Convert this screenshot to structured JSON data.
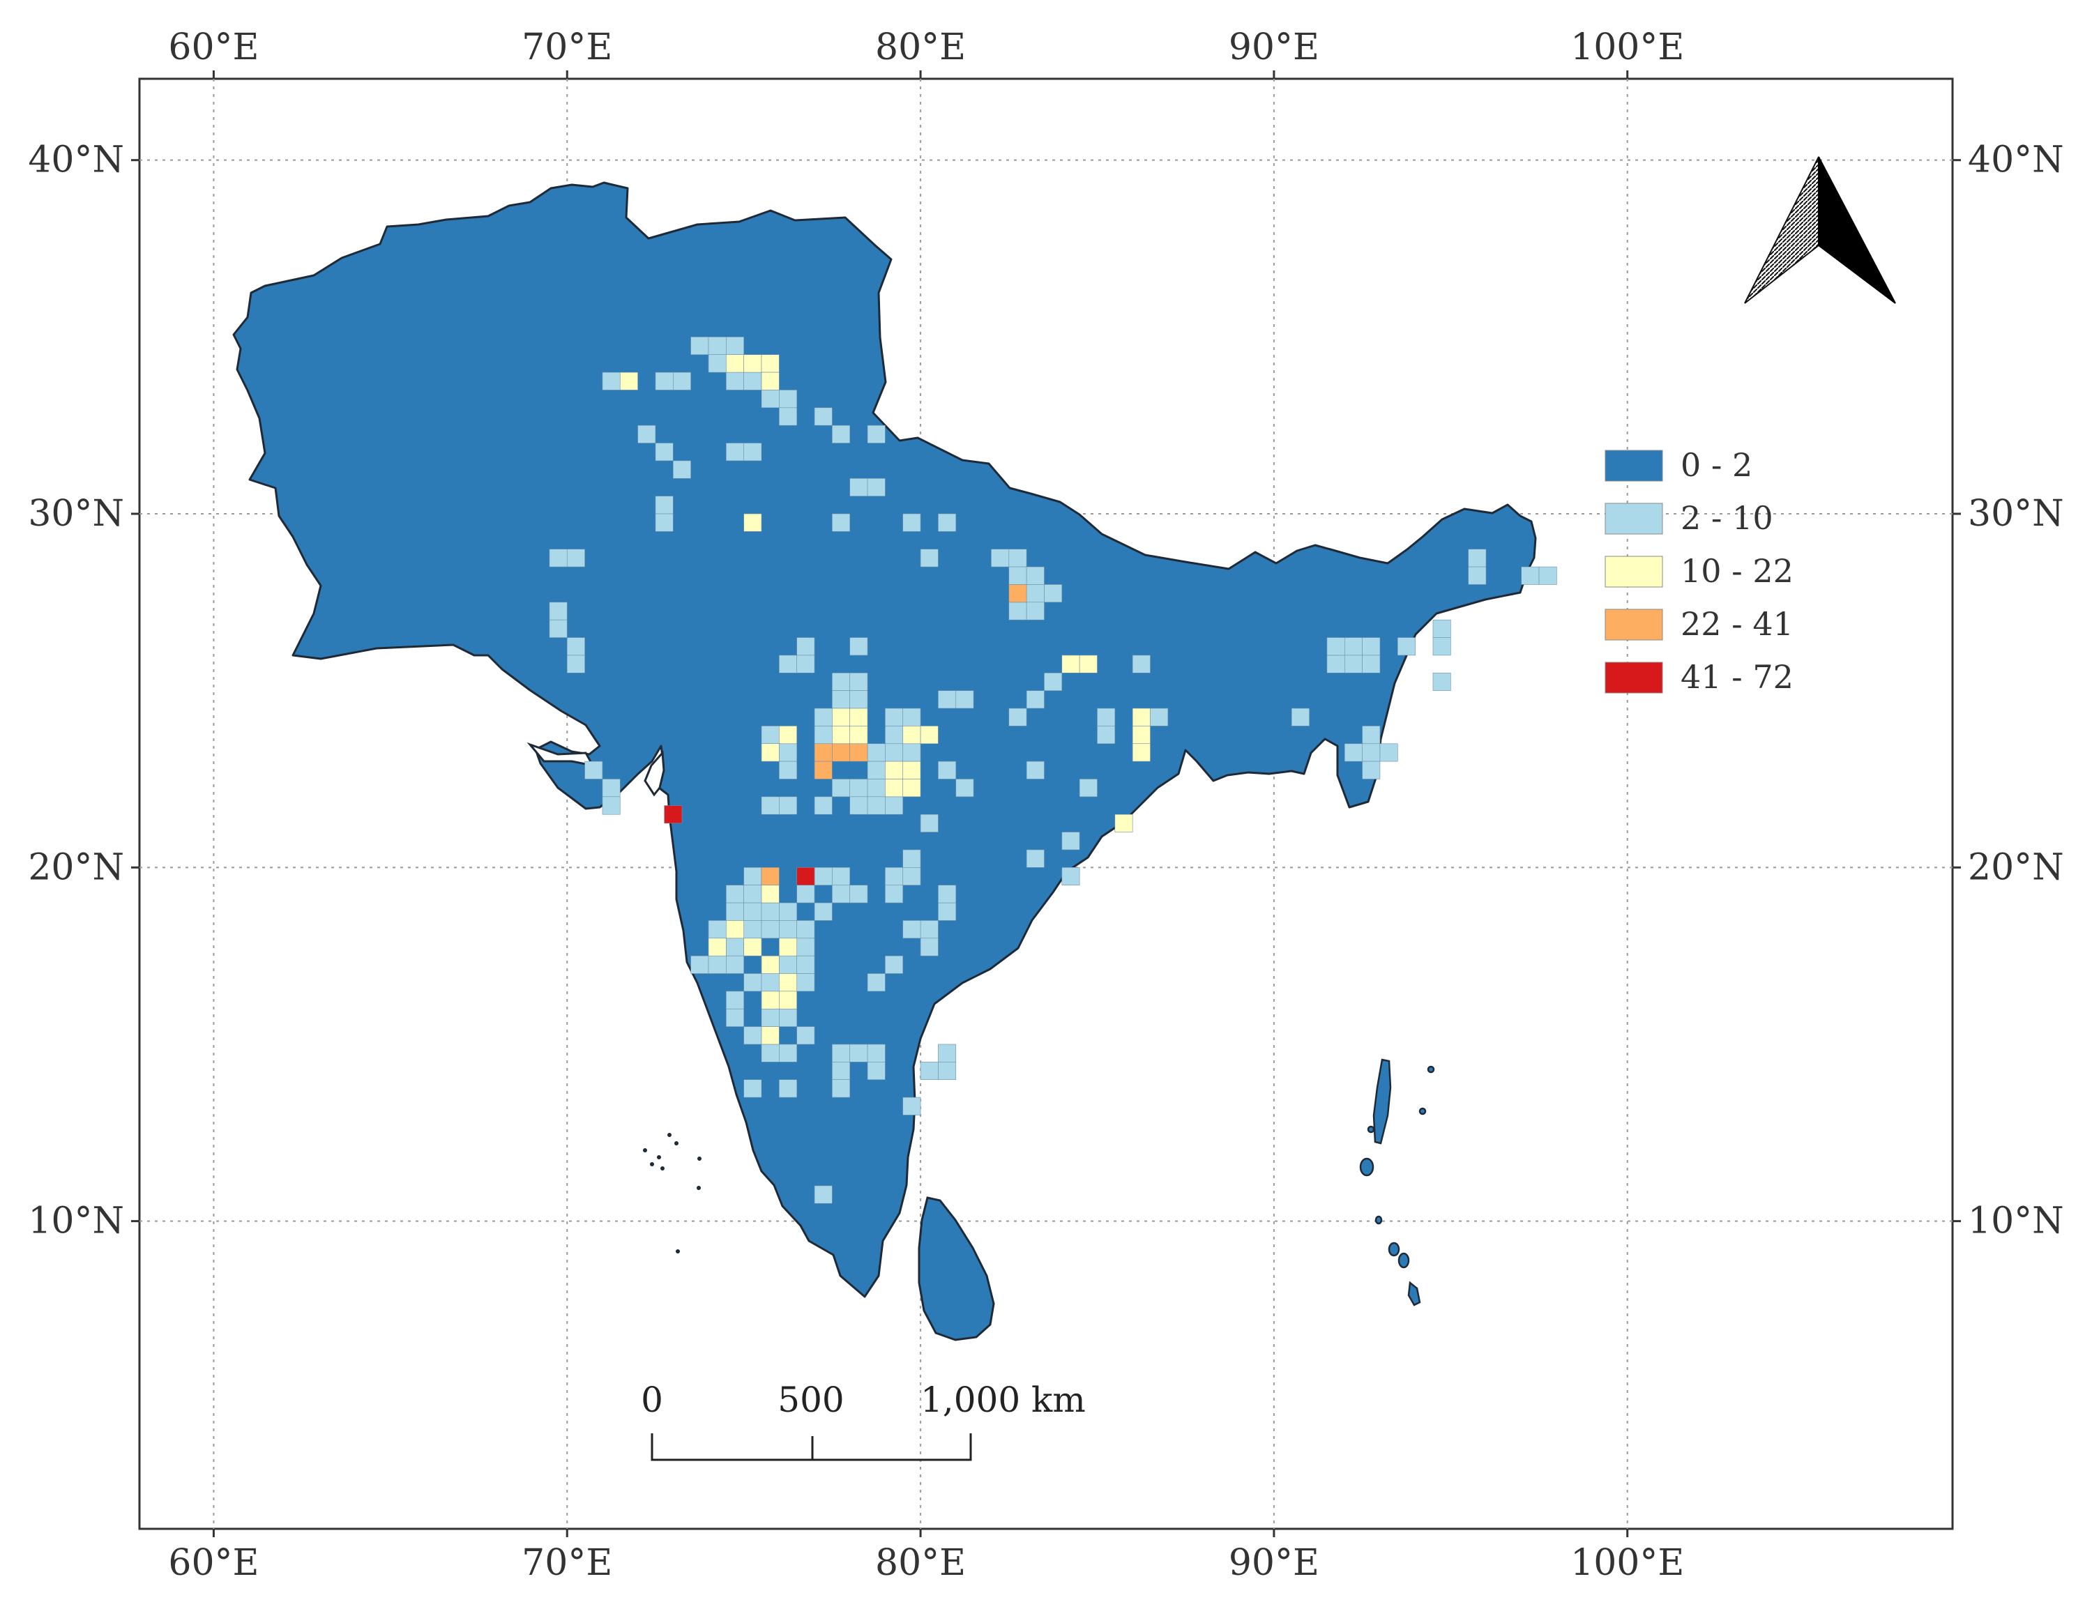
{
  "axes": {
    "longitude_ticks": [
      {
        "value": 60,
        "label": "60°E"
      },
      {
        "value": 70,
        "label": "70°E"
      },
      {
        "value": 80,
        "label": "80°E"
      },
      {
        "value": 90,
        "label": "90°E"
      },
      {
        "value": 100,
        "label": "100°E"
      }
    ],
    "latitude_ticks": [
      {
        "value": 40,
        "label": "40°N"
      },
      {
        "value": 30,
        "label": "30°N"
      },
      {
        "value": 20,
        "label": "20°N"
      },
      {
        "value": 10,
        "label": "10°N"
      }
    ],
    "lon_range": [
      57.9,
      109.2
    ],
    "lat_range": [
      1.3,
      42.3
    ],
    "grid": true
  },
  "legend": {
    "placement": "right",
    "classes": [
      {
        "label": "0 - 2",
        "color": "#2c7bb6"
      },
      {
        "label": "2 - 10",
        "color": "#abd9e9"
      },
      {
        "label": "10 - 22",
        "color": "#ffffbf"
      },
      {
        "label": "22 - 41",
        "color": "#fdae61"
      },
      {
        "label": "41 - 72",
        "color": "#d7191c"
      }
    ]
  },
  "scale_bar": {
    "labels": [
      "0",
      "500",
      "1,000 km"
    ]
  },
  "north_arrow": {
    "icon": "north-arrow-icon"
  },
  "colors": {
    "land": "#2c7bb6",
    "outline": "#1f2a36",
    "grid": "#9a9a9a"
  },
  "cells": {
    "class_1": [
      [
        72.5,
        33.5
      ],
      [
        73,
        33.5
      ],
      [
        71,
        33.5
      ],
      [
        73.5,
        34.5
      ],
      [
        74,
        34.5
      ],
      [
        74.5,
        34.5
      ],
      [
        74,
        34
      ],
      [
        74.5,
        33.5
      ],
      [
        75,
        33.5
      ],
      [
        75.5,
        33.5
      ],
      [
        75.5,
        33
      ],
      [
        76,
        33
      ],
      [
        76,
        32.5
      ],
      [
        77,
        32.5
      ],
      [
        77.5,
        32
      ],
      [
        78.5,
        32
      ],
      [
        72,
        32
      ],
      [
        72.5,
        31.5
      ],
      [
        73,
        31
      ],
      [
        75,
        31.5
      ],
      [
        74.5,
        31.5
      ],
      [
        78,
        30.5
      ],
      [
        78.5,
        30.5
      ],
      [
        72.5,
        30
      ],
      [
        72.5,
        29.5
      ],
      [
        77.5,
        29.5
      ],
      [
        79.5,
        29.5
      ],
      [
        80.5,
        29.5
      ],
      [
        69.5,
        28.5
      ],
      [
        70,
        28.5
      ],
      [
        80,
        28.5
      ],
      [
        82,
        28.5
      ],
      [
        82.5,
        28.5
      ],
      [
        82.5,
        28
      ],
      [
        83,
        28
      ],
      [
        83,
        27.5
      ],
      [
        83.5,
        27.5
      ],
      [
        82.5,
        27
      ],
      [
        83,
        27
      ],
      [
        69.5,
        27
      ],
      [
        69.5,
        26.5
      ],
      [
        70,
        26
      ],
      [
        70,
        25.5
      ],
      [
        76.5,
        26
      ],
      [
        78,
        26
      ],
      [
        76,
        25.5
      ],
      [
        76.5,
        25.5
      ],
      [
        77.5,
        25
      ],
      [
        78,
        25
      ],
      [
        77.5,
        24.5
      ],
      [
        78,
        24.5
      ],
      [
        77,
        24
      ],
      [
        79,
        24
      ],
      [
        79.5,
        24
      ],
      [
        79,
        23.5
      ],
      [
        80.5,
        24.5
      ],
      [
        83.5,
        25
      ],
      [
        83,
        24.5
      ],
      [
        82.5,
        24
      ],
      [
        81,
        24.5
      ],
      [
        86,
        25.5
      ],
      [
        86.5,
        24
      ],
      [
        85,
        24
      ],
      [
        85,
        23.5
      ],
      [
        91.5,
        25.5
      ],
      [
        91.5,
        26
      ],
      [
        92,
        26
      ],
      [
        92.5,
        26
      ],
      [
        92,
        25.5
      ],
      [
        92.5,
        25.5
      ],
      [
        94.5,
        26
      ],
      [
        94.5,
        26.5
      ],
      [
        90.5,
        24
      ],
      [
        92.5,
        23.5
      ],
      [
        92.5,
        23
      ],
      [
        92,
        23
      ],
      [
        71,
        22
      ],
      [
        70.5,
        22.5
      ],
      [
        71,
        21.5
      ],
      [
        75.5,
        23.5
      ],
      [
        75.5,
        23
      ],
      [
        76,
        23
      ],
      [
        76,
        22.5
      ],
      [
        77,
        23.5
      ],
      [
        78.5,
        23
      ],
      [
        78.5,
        22.5
      ],
      [
        79,
        23
      ],
      [
        79.5,
        23
      ],
      [
        77.5,
        22
      ],
      [
        78,
        22
      ],
      [
        78.5,
        22
      ],
      [
        79,
        22
      ],
      [
        77,
        21.5
      ],
      [
        78,
        21.5
      ],
      [
        78.5,
        21.5
      ],
      [
        79,
        21.5
      ],
      [
        75.5,
        21.5
      ],
      [
        76,
        21.5
      ],
      [
        80,
        21
      ],
      [
        83,
        20
      ],
      [
        84,
        20.5
      ],
      [
        84,
        19.5
      ],
      [
        75,
        19.5
      ],
      [
        75.5,
        19.5
      ],
      [
        77.5,
        19
      ],
      [
        77,
        19.5
      ],
      [
        77.5,
        19.5
      ],
      [
        74.5,
        19
      ],
      [
        75,
        19
      ],
      [
        76.5,
        19
      ],
      [
        74.5,
        18.5
      ],
      [
        75,
        18.5
      ],
      [
        75.5,
        18.5
      ],
      [
        76,
        18.5
      ],
      [
        77,
        18.5
      ],
      [
        74,
        18
      ],
      [
        74.5,
        18
      ],
      [
        75,
        18
      ],
      [
        75.5,
        18
      ],
      [
        76,
        18
      ],
      [
        76.5,
        18
      ],
      [
        74,
        17.5
      ],
      [
        74.5,
        17.5
      ],
      [
        75,
        17.5
      ],
      [
        76,
        17.5
      ],
      [
        76.5,
        17.5
      ],
      [
        75.5,
        17
      ],
      [
        76,
        17
      ],
      [
        76.5,
        17
      ],
      [
        73.5,
        17
      ],
      [
        74,
        17
      ],
      [
        74.5,
        17
      ],
      [
        75,
        16.5
      ],
      [
        75.5,
        16.5
      ],
      [
        76.5,
        16.5
      ],
      [
        74.5,
        16
      ],
      [
        74.5,
        15.5
      ],
      [
        75.5,
        15.5
      ],
      [
        76,
        15.5
      ],
      [
        76.5,
        15
      ],
      [
        75,
        15
      ],
      [
        75.5,
        14.5
      ],
      [
        76,
        14.5
      ],
      [
        77.5,
        14.5
      ],
      [
        78,
        14.5
      ],
      [
        78.5,
        14.5
      ],
      [
        77.5,
        14
      ],
      [
        78.5,
        14
      ],
      [
        80,
        14
      ],
      [
        80.5,
        14.5
      ],
      [
        80.5,
        14
      ],
      [
        80,
        18
      ],
      [
        80.5,
        18.5
      ],
      [
        80.5,
        19
      ],
      [
        79,
        19
      ],
      [
        78,
        19
      ],
      [
        78.5,
        16.5
      ],
      [
        79,
        17
      ],
      [
        79.5,
        18
      ],
      [
        80,
        17.5
      ],
      [
        79,
        19.5
      ],
      [
        79.5,
        20
      ],
      [
        79.5,
        19.5
      ],
      [
        75,
        13.5
      ],
      [
        76,
        13.5
      ],
      [
        77.5,
        13.5
      ],
      [
        79.5,
        13
      ],
      [
        77,
        10.5
      ],
      [
        95.5,
        28.5
      ],
      [
        95.5,
        28
      ],
      [
        97,
        28
      ],
      [
        97.5,
        28
      ],
      [
        93.5,
        26
      ],
      [
        94.5,
        25
      ],
      [
        93,
        23
      ],
      [
        92.5,
        22.5
      ],
      [
        86,
        23
      ],
      [
        84.5,
        22
      ],
      [
        81,
        22
      ],
      [
        80.5,
        22.5
      ],
      [
        83,
        22.5
      ]
    ],
    "class_2": [
      [
        71.5,
        33.5
      ],
      [
        74.5,
        34
      ],
      [
        75,
        34
      ],
      [
        75.5,
        34
      ],
      [
        75.5,
        33.5
      ],
      [
        75,
        29.5
      ],
      [
        76,
        23.5
      ],
      [
        77.5,
        24
      ],
      [
        77.5,
        23.5
      ],
      [
        78,
        24
      ],
      [
        78,
        23.5
      ],
      [
        79.5,
        23.5
      ],
      [
        80,
        23.5
      ],
      [
        75.5,
        23
      ],
      [
        79,
        22.5
      ],
      [
        79.5,
        22.5
      ],
      [
        79,
        22
      ],
      [
        79.5,
        22
      ],
      [
        84,
        25.5
      ],
      [
        84.5,
        25.5
      ],
      [
        86,
        24
      ],
      [
        86,
        23.5
      ],
      [
        86,
        23
      ],
      [
        85.5,
        21
      ],
      [
        75.5,
        19
      ],
      [
        74.5,
        18
      ],
      [
        76,
        17.5
      ],
      [
        75,
        17.5
      ],
      [
        74,
        17.5
      ],
      [
        75.5,
        17
      ],
      [
        76,
        16.5
      ],
      [
        75.5,
        15
      ],
      [
        75.5,
        16
      ],
      [
        76,
        16
      ]
    ],
    "class_3": [
      [
        82.5,
        27.5
      ],
      [
        75.5,
        19.5
      ],
      [
        77,
        23
      ],
      [
        77.5,
        23
      ],
      [
        78,
        23
      ],
      [
        77,
        22.5
      ]
    ],
    "class_4": [
      [
        72.75,
        21.25
      ],
      [
        76.5,
        19.5
      ]
    ]
  }
}
